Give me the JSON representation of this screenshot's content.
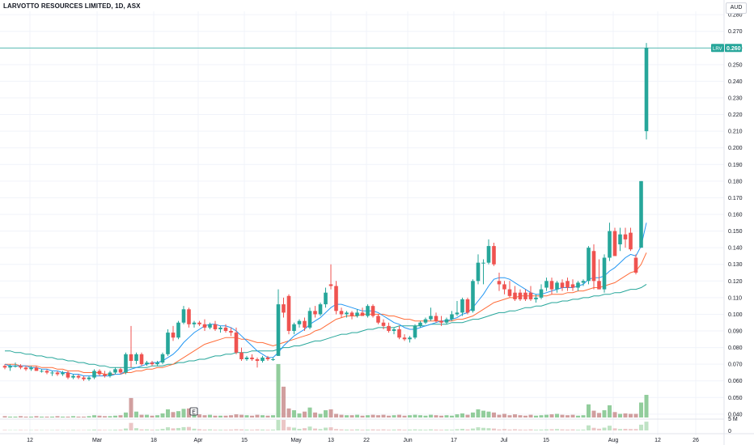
{
  "header": {
    "title": "LARVOTTO RESOURCES LIMITED, 1D, ASX",
    "currency": "AUD"
  },
  "price_tag": {
    "symbol": "LRV",
    "value": "0.260"
  },
  "earnings_marker": "E",
  "volume_axis_label": "5 M",
  "colors": {
    "up": "#26a69a",
    "down": "#ef5350",
    "ma_short": "#2196f3",
    "ma_mid": "#ff6d3a",
    "ma_long": "#26a69a",
    "vol_up": "#7fc48b",
    "vol_down": "#c98e8e",
    "price_line": "#26a69a"
  },
  "chart_data": {
    "type": "candlestick",
    "y_ticks": [
      "0.280",
      "0.270",
      "0.260",
      "0.250",
      "0.240",
      "0.230",
      "0.220",
      "0.210",
      "0.200",
      "0.190",
      "0.180",
      "0.170",
      "0.160",
      "0.150",
      "0.140",
      "0.130",
      "0.120",
      "0.110",
      "0.100",
      "0.090",
      "0.080",
      "0.070",
      "0.060",
      "0.050",
      "0.040"
    ],
    "volume_ticks": [
      "5 M",
      "0"
    ],
    "x_ticks": [
      "12",
      "Mar",
      "18",
      "Apr",
      "15",
      "May",
      "13",
      "22",
      "Jun",
      "17",
      "Jul",
      "15",
      "Aug",
      "12",
      "26"
    ],
    "ylim": [
      0.038,
      0.282
    ],
    "last_price": 0.26,
    "candles": [
      [
        0.069,
        0.07,
        0.067,
        0.068
      ],
      [
        0.068,
        0.07,
        0.066,
        0.069
      ],
      [
        0.069,
        0.071,
        0.068,
        0.069
      ],
      [
        0.069,
        0.07,
        0.067,
        0.068
      ],
      [
        0.068,
        0.069,
        0.066,
        0.067
      ],
      [
        0.067,
        0.069,
        0.066,
        0.068
      ],
      [
        0.068,
        0.069,
        0.066,
        0.066
      ],
      [
        0.066,
        0.067,
        0.065,
        0.066
      ],
      [
        0.066,
        0.067,
        0.064,
        0.065
      ],
      [
        0.065,
        0.066,
        0.063,
        0.065
      ],
      [
        0.065,
        0.066,
        0.063,
        0.064
      ],
      [
        0.064,
        0.066,
        0.063,
        0.065
      ],
      [
        0.065,
        0.066,
        0.061,
        0.062
      ],
      [
        0.062,
        0.064,
        0.061,
        0.063
      ],
      [
        0.063,
        0.064,
        0.061,
        0.062
      ],
      [
        0.062,
        0.063,
        0.06,
        0.061
      ],
      [
        0.061,
        0.063,
        0.06,
        0.062
      ],
      [
        0.062,
        0.067,
        0.061,
        0.066
      ],
      [
        0.066,
        0.067,
        0.063,
        0.064
      ],
      [
        0.064,
        0.066,
        0.062,
        0.063
      ],
      [
        0.063,
        0.066,
        0.062,
        0.065
      ],
      [
        0.065,
        0.068,
        0.064,
        0.067
      ],
      [
        0.067,
        0.068,
        0.064,
        0.065
      ],
      [
        0.065,
        0.077,
        0.064,
        0.076
      ],
      [
        0.076,
        0.093,
        0.068,
        0.072
      ],
      [
        0.072,
        0.077,
        0.07,
        0.076
      ],
      [
        0.076,
        0.077,
        0.069,
        0.07
      ],
      [
        0.07,
        0.072,
        0.069,
        0.071
      ],
      [
        0.071,
        0.072,
        0.069,
        0.07
      ],
      [
        0.07,
        0.072,
        0.069,
        0.071
      ],
      [
        0.071,
        0.077,
        0.07,
        0.076
      ],
      [
        0.076,
        0.091,
        0.075,
        0.089
      ],
      [
        0.089,
        0.093,
        0.084,
        0.086
      ],
      [
        0.086,
        0.096,
        0.085,
        0.095
      ],
      [
        0.095,
        0.105,
        0.094,
        0.103
      ],
      [
        0.103,
        0.104,
        0.092,
        0.094
      ],
      [
        0.094,
        0.096,
        0.092,
        0.095
      ],
      [
        0.095,
        0.096,
        0.093,
        0.094
      ],
      [
        0.094,
        0.097,
        0.09,
        0.092
      ],
      [
        0.092,
        0.095,
        0.091,
        0.094
      ],
      [
        0.094,
        0.096,
        0.09,
        0.091
      ],
      [
        0.091,
        0.093,
        0.089,
        0.092
      ],
      [
        0.092,
        0.094,
        0.089,
        0.09
      ],
      [
        0.09,
        0.092,
        0.087,
        0.089
      ],
      [
        0.089,
        0.092,
        0.076,
        0.077
      ],
      [
        0.077,
        0.08,
        0.072,
        0.073
      ],
      [
        0.073,
        0.075,
        0.072,
        0.074
      ],
      [
        0.074,
        0.076,
        0.072,
        0.073
      ],
      [
        0.073,
        0.074,
        0.068,
        0.072
      ],
      [
        0.072,
        0.075,
        0.071,
        0.074
      ],
      [
        0.074,
        0.075,
        0.072,
        0.073
      ],
      [
        0.073,
        0.074,
        0.072,
        0.073
      ],
      [
        0.075,
        0.115,
        0.075,
        0.106
      ],
      [
        0.106,
        0.11,
        0.098,
        0.101
      ],
      [
        0.111,
        0.112,
        0.088,
        0.09
      ],
      [
        0.09,
        0.095,
        0.088,
        0.094
      ],
      [
        0.094,
        0.097,
        0.092,
        0.096
      ],
      [
        0.096,
        0.098,
        0.09,
        0.092
      ],
      [
        0.092,
        0.104,
        0.091,
        0.102
      ],
      [
        0.102,
        0.105,
        0.098,
        0.1
      ],
      [
        0.1,
        0.107,
        0.099,
        0.106
      ],
      [
        0.106,
        0.116,
        0.104,
        0.113
      ],
      [
        0.118,
        0.13,
        0.115,
        0.117
      ],
      [
        0.117,
        0.12,
        0.1,
        0.102
      ],
      [
        0.102,
        0.104,
        0.098,
        0.1
      ],
      [
        0.1,
        0.102,
        0.098,
        0.101
      ],
      [
        0.101,
        0.102,
        0.097,
        0.099
      ],
      [
        0.099,
        0.103,
        0.098,
        0.101
      ],
      [
        0.101,
        0.104,
        0.099,
        0.099
      ],
      [
        0.099,
        0.106,
        0.098,
        0.105
      ],
      [
        0.105,
        0.106,
        0.098,
        0.099
      ],
      [
        0.099,
        0.1,
        0.094,
        0.095
      ],
      [
        0.095,
        0.097,
        0.091,
        0.093
      ],
      [
        0.093,
        0.095,
        0.089,
        0.09
      ],
      [
        0.09,
        0.092,
        0.088,
        0.091
      ],
      [
        0.091,
        0.093,
        0.085,
        0.086
      ],
      [
        0.086,
        0.088,
        0.084,
        0.085
      ],
      [
        0.085,
        0.087,
        0.083,
        0.086
      ],
      [
        0.086,
        0.094,
        0.085,
        0.093
      ],
      [
        0.093,
        0.096,
        0.092,
        0.095
      ],
      [
        0.095,
        0.098,
        0.094,
        0.097
      ],
      [
        0.097,
        0.104,
        0.096,
        0.099
      ],
      [
        0.099,
        0.101,
        0.095,
        0.096
      ],
      [
        0.096,
        0.099,
        0.093,
        0.095
      ],
      [
        0.095,
        0.098,
        0.094,
        0.097
      ],
      [
        0.097,
        0.102,
        0.096,
        0.1
      ],
      [
        0.1,
        0.108,
        0.099,
        0.101
      ],
      [
        0.101,
        0.11,
        0.099,
        0.109
      ],
      [
        0.109,
        0.11,
        0.1,
        0.101
      ],
      [
        0.102,
        0.121,
        0.101,
        0.12
      ],
      [
        0.12,
        0.136,
        0.118,
        0.131
      ],
      [
        0.131,
        0.133,
        0.118,
        0.131
      ],
      [
        0.131,
        0.145,
        0.13,
        0.141
      ],
      [
        0.141,
        0.143,
        0.129,
        0.13
      ],
      [
        0.12,
        0.125,
        0.114,
        0.118
      ],
      [
        0.118,
        0.12,
        0.112,
        0.115
      ],
      [
        0.115,
        0.12,
        0.11,
        0.111
      ],
      [
        0.113,
        0.117,
        0.108,
        0.109
      ],
      [
        0.113,
        0.115,
        0.108,
        0.109
      ],
      [
        0.113,
        0.115,
        0.108,
        0.109
      ],
      [
        0.113,
        0.117,
        0.108,
        0.109
      ],
      [
        0.109,
        0.112,
        0.107,
        0.11
      ],
      [
        0.11,
        0.118,
        0.109,
        0.115
      ],
      [
        0.116,
        0.122,
        0.114,
        0.12
      ],
      [
        0.12,
        0.122,
        0.112,
        0.115
      ],
      [
        0.115,
        0.12,
        0.113,
        0.119
      ],
      [
        0.119,
        0.121,
        0.114,
        0.116
      ],
      [
        0.12,
        0.122,
        0.114,
        0.116
      ],
      [
        0.118,
        0.121,
        0.114,
        0.116
      ],
      [
        0.116,
        0.12,
        0.114,
        0.119
      ],
      [
        0.119,
        0.121,
        0.117,
        0.12
      ],
      [
        0.12,
        0.141,
        0.118,
        0.14
      ],
      [
        0.138,
        0.142,
        0.115,
        0.12
      ],
      [
        0.12,
        0.133,
        0.115,
        0.115
      ],
      [
        0.115,
        0.136,
        0.113,
        0.134
      ],
      [
        0.134,
        0.155,
        0.132,
        0.15
      ],
      [
        0.15,
        0.152,
        0.135,
        0.135
      ],
      [
        0.142,
        0.152,
        0.138,
        0.148
      ],
      [
        0.148,
        0.152,
        0.14,
        0.145
      ],
      [
        0.149,
        0.152,
        0.138,
        0.139
      ],
      [
        0.134,
        0.136,
        0.124,
        0.125
      ],
      [
        0.14,
        0.18,
        0.14,
        0.18
      ],
      [
        0.21,
        0.263,
        0.205,
        0.26
      ]
    ],
    "ma_short": [
      0.07,
      0.069,
      0.069,
      0.069,
      0.069,
      0.068,
      0.068,
      0.067,
      0.067,
      0.066,
      0.066,
      0.065,
      0.065,
      0.064,
      0.064,
      0.063,
      0.063,
      0.063,
      0.063,
      0.063,
      0.063,
      0.064,
      0.064,
      0.066,
      0.067,
      0.068,
      0.069,
      0.07,
      0.071,
      0.071,
      0.072,
      0.074,
      0.076,
      0.079,
      0.083,
      0.086,
      0.089,
      0.091,
      0.093,
      0.094,
      0.094,
      0.093,
      0.093,
      0.092,
      0.09,
      0.087,
      0.084,
      0.081,
      0.078,
      0.076,
      0.074,
      0.074,
      0.077,
      0.081,
      0.084,
      0.087,
      0.089,
      0.091,
      0.094,
      0.096,
      0.098,
      0.101,
      0.104,
      0.106,
      0.106,
      0.105,
      0.104,
      0.103,
      0.102,
      0.102,
      0.102,
      0.101,
      0.099,
      0.097,
      0.095,
      0.094,
      0.092,
      0.091,
      0.091,
      0.092,
      0.093,
      0.094,
      0.095,
      0.096,
      0.096,
      0.097,
      0.098,
      0.1,
      0.101,
      0.104,
      0.108,
      0.112,
      0.117,
      0.121,
      0.122,
      0.122,
      0.121,
      0.119,
      0.117,
      0.115,
      0.113,
      0.112,
      0.112,
      0.113,
      0.114,
      0.115,
      0.116,
      0.116,
      0.116,
      0.117,
      0.118,
      0.121,
      0.122,
      0.122,
      0.123,
      0.126,
      0.128,
      0.131,
      0.134,
      0.136,
      0.135,
      0.141,
      0.155
    ],
    "ma_mid": [
      0.07,
      0.07,
      0.07,
      0.069,
      0.069,
      0.069,
      0.069,
      0.068,
      0.068,
      0.068,
      0.067,
      0.067,
      0.066,
      0.066,
      0.066,
      0.065,
      0.065,
      0.065,
      0.065,
      0.064,
      0.064,
      0.064,
      0.064,
      0.065,
      0.065,
      0.066,
      0.066,
      0.067,
      0.067,
      0.068,
      0.068,
      0.069,
      0.07,
      0.072,
      0.074,
      0.076,
      0.078,
      0.08,
      0.082,
      0.083,
      0.084,
      0.085,
      0.086,
      0.086,
      0.086,
      0.085,
      0.085,
      0.084,
      0.083,
      0.083,
      0.082,
      0.081,
      0.082,
      0.083,
      0.084,
      0.085,
      0.086,
      0.087,
      0.088,
      0.09,
      0.091,
      0.093,
      0.095,
      0.097,
      0.098,
      0.099,
      0.099,
      0.099,
      0.1,
      0.1,
      0.1,
      0.1,
      0.1,
      0.099,
      0.099,
      0.098,
      0.097,
      0.097,
      0.096,
      0.096,
      0.096,
      0.096,
      0.096,
      0.096,
      0.096,
      0.096,
      0.097,
      0.097,
      0.098,
      0.099,
      0.101,
      0.103,
      0.105,
      0.107,
      0.108,
      0.109,
      0.11,
      0.11,
      0.111,
      0.111,
      0.111,
      0.111,
      0.111,
      0.111,
      0.112,
      0.112,
      0.112,
      0.113,
      0.113,
      0.114,
      0.114,
      0.115,
      0.116,
      0.116,
      0.117,
      0.118,
      0.119,
      0.121,
      0.123,
      0.125,
      0.126,
      0.13,
      0.137
    ],
    "ma_long": [
      0.078,
      0.078,
      0.077,
      0.077,
      0.076,
      0.076,
      0.075,
      0.075,
      0.074,
      0.074,
      0.073,
      0.073,
      0.072,
      0.072,
      0.071,
      0.071,
      0.07,
      0.07,
      0.069,
      0.069,
      0.068,
      0.068,
      0.068,
      0.068,
      0.068,
      0.068,
      0.068,
      0.068,
      0.069,
      0.069,
      0.069,
      0.07,
      0.07,
      0.071,
      0.071,
      0.072,
      0.072,
      0.073,
      0.073,
      0.074,
      0.075,
      0.075,
      0.076,
      0.076,
      0.077,
      0.077,
      0.077,
      0.078,
      0.078,
      0.078,
      0.078,
      0.078,
      0.079,
      0.08,
      0.08,
      0.081,
      0.081,
      0.082,
      0.083,
      0.084,
      0.084,
      0.085,
      0.086,
      0.087,
      0.088,
      0.088,
      0.089,
      0.089,
      0.09,
      0.091,
      0.091,
      0.092,
      0.092,
      0.092,
      0.092,
      0.093,
      0.093,
      0.093,
      0.093,
      0.093,
      0.093,
      0.094,
      0.094,
      0.094,
      0.094,
      0.095,
      0.095,
      0.095,
      0.096,
      0.097,
      0.097,
      0.098,
      0.099,
      0.1,
      0.101,
      0.101,
      0.102,
      0.102,
      0.103,
      0.104,
      0.104,
      0.105,
      0.105,
      0.106,
      0.107,
      0.107,
      0.108,
      0.108,
      0.109,
      0.109,
      0.11,
      0.11,
      0.111,
      0.111,
      0.112,
      0.112,
      0.113,
      0.113,
      0.114,
      0.115,
      0.115,
      0.116,
      0.118
    ],
    "volume_m": [
      0.3,
      0.2,
      0.2,
      0.3,
      0.2,
      0.2,
      0.3,
      0.2,
      0.2,
      0.2,
      0.3,
      0.2,
      0.2,
      0.3,
      0.2,
      0.2,
      0.3,
      0.5,
      0.4,
      0.3,
      0.3,
      0.4,
      0.5,
      1.1,
      4.3,
      1.3,
      0.6,
      0.6,
      0.4,
      0.5,
      0.9,
      1.8,
      1.2,
      1.4,
      1.9,
      2.0,
      1.0,
      0.7,
      0.5,
      0.6,
      0.4,
      0.4,
      0.4,
      0.5,
      0.7,
      0.6,
      0.5,
      0.4,
      0.6,
      0.5,
      0.4,
      0.5,
      11.8,
      6.8,
      2.0,
      1.6,
      0.9,
      1.3,
      2.2,
      1.1,
      0.8,
      1.6,
      1.8,
      0.8,
      0.6,
      0.5,
      0.5,
      0.6,
      0.4,
      0.5,
      0.6,
      0.5,
      0.6,
      0.4,
      0.5,
      0.6,
      0.4,
      0.5,
      0.6,
      0.5,
      0.4,
      0.6,
      0.5,
      0.4,
      0.5,
      0.4,
      0.7,
      0.9,
      0.6,
      1.1,
      1.8,
      1.5,
      1.3,
      1.1,
      0.6,
      0.8,
      0.5,
      0.7,
      0.5,
      0.4,
      0.6,
      0.4,
      0.5,
      0.6,
      0.7,
      0.8,
      0.6,
      0.5,
      0.6,
      0.4,
      0.5,
      2.9,
      1.5,
      1.0,
      1.6,
      2.7,
      1.2,
      0.8,
      0.9,
      0.8,
      0.8,
      3.3,
      5.0
    ]
  }
}
